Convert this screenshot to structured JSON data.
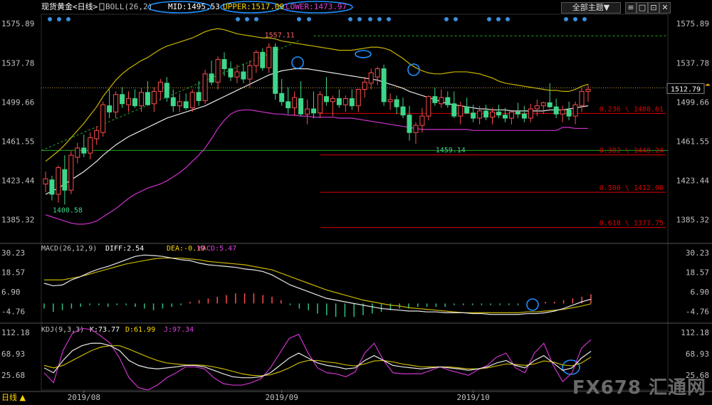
{
  "header": {
    "instrument": "现货黄金<日线>",
    "boll": "BOLL(26,2)",
    "mid": "MID:1495.53",
    "upper": "UPPER:1517.09",
    "lower": "LOWER:1473.97",
    "topic_button": "全部主题▼"
  },
  "window_buttons": [
    "≡",
    "□",
    "⊡",
    "✕"
  ],
  "bottom": {
    "period": "日线 ▲"
  },
  "watermark": "FX678 汇通网",
  "colors": {
    "up": "#ff4d4d",
    "down": "#3ed68a",
    "mid": "#e8e8e8",
    "upper": "#c8b400",
    "lower": "#cc33cc",
    "fib": "#e00000",
    "green_line": "#22aa22",
    "circle": "#1e90ff",
    "text": "#c0c0c0"
  },
  "chart_data": [
    {
      "type": "candlestick",
      "title": "现货黄金<日线>",
      "indicator": "BOLL(26,2)",
      "ylim": [
        1365,
        1585
      ],
      "y_ticks": [
        1575.89,
        1537.78,
        1499.66,
        1461.55,
        1423.44,
        1385.32
      ],
      "x_ticks": [
        {
          "label": "2019/08",
          "index": 6
        },
        {
          "label": "2019/09",
          "index": 37
        },
        {
          "label": "2019/10",
          "index": 67
        }
      ],
      "last_price": "1512.79",
      "price_labels": [
        {
          "text": "1557.11",
          "index": 36,
          "value": 1557.11
        },
        {
          "text": "1459.14",
          "index": 63,
          "value": 1459.14
        },
        {
          "text": "1400.58",
          "index": 3,
          "value": 1400.58
        }
      ],
      "fib_levels": [
        {
          "label": "0.236 \\ 1488.61",
          "value": 1488.61
        },
        {
          "label": "0.382 \\ 1448.24",
          "value": 1448.24
        },
        {
          "label": "0.500 \\ 1412.00",
          "value": 1412.0
        },
        {
          "label": "0.618 \\ 1377.75",
          "value": 1377.75
        }
      ],
      "candles": [
        [
          1420,
          1432,
          1412,
          1425
        ],
        [
          1424,
          1428,
          1404,
          1410
        ],
        [
          1410,
          1438,
          1402,
          1436
        ],
        [
          1434,
          1448,
          1400,
          1414
        ],
        [
          1414,
          1452,
          1410,
          1448
        ],
        [
          1446,
          1460,
          1440,
          1455
        ],
        [
          1455,
          1468,
          1446,
          1450
        ],
        [
          1450,
          1470,
          1444,
          1465
        ],
        [
          1464,
          1476,
          1458,
          1472
        ],
        [
          1470,
          1500,
          1466,
          1497
        ],
        [
          1496,
          1512,
          1484,
          1490
        ],
        [
          1490,
          1510,
          1484,
          1507
        ],
        [
          1507,
          1514,
          1494,
          1498
        ],
        [
          1497,
          1510,
          1490,
          1503
        ],
        [
          1503,
          1512,
          1494,
          1496
        ],
        [
          1496,
          1513,
          1490,
          1509
        ],
        [
          1509,
          1520,
          1496,
          1497
        ],
        [
          1498,
          1514,
          1490,
          1510
        ],
        [
          1510,
          1522,
          1502,
          1519
        ],
        [
          1518,
          1524,
          1500,
          1504
        ],
        [
          1504,
          1512,
          1490,
          1496
        ],
        [
          1496,
          1508,
          1490,
          1500
        ],
        [
          1500,
          1508,
          1492,
          1494
        ],
        [
          1494,
          1512,
          1490,
          1509
        ],
        [
          1509,
          1520,
          1496,
          1501
        ],
        [
          1501,
          1531,
          1498,
          1527
        ],
        [
          1527,
          1540,
          1516,
          1519
        ],
        [
          1519,
          1544,
          1512,
          1541
        ],
        [
          1541,
          1548,
          1525,
          1532
        ],
        [
          1532,
          1539,
          1520,
          1524
        ],
        [
          1524,
          1536,
          1518,
          1529
        ],
        [
          1529,
          1537,
          1518,
          1522
        ],
        [
          1522,
          1540,
          1514,
          1535
        ],
        [
          1535,
          1550,
          1528,
          1548
        ],
        [
          1548,
          1552,
          1530,
          1533
        ],
        [
          1533,
          1557,
          1528,
          1553
        ],
        [
          1553,
          1557,
          1502,
          1508
        ],
        [
          1508,
          1522,
          1496,
          1500
        ],
        [
          1500,
          1514,
          1488,
          1494
        ],
        [
          1494,
          1510,
          1486,
          1504
        ],
        [
          1503,
          1520,
          1486,
          1488
        ],
        [
          1488,
          1502,
          1478,
          1493
        ],
        [
          1493,
          1510,
          1484,
          1489
        ],
        [
          1489,
          1510,
          1484,
          1507
        ],
        [
          1505,
          1524,
          1496,
          1500
        ],
        [
          1500,
          1506,
          1486,
          1503
        ],
        [
          1503,
          1512,
          1494,
          1497
        ],
        [
          1497,
          1506,
          1490,
          1503
        ],
        [
          1503,
          1512,
          1492,
          1496
        ],
        [
          1496,
          1512,
          1490,
          1512
        ],
        [
          1512,
          1524,
          1504,
          1519
        ],
        [
          1518,
          1532,
          1512,
          1528
        ],
        [
          1524,
          1534,
          1516,
          1532
        ],
        [
          1532,
          1536,
          1496,
          1500
        ],
        [
          1500,
          1508,
          1492,
          1502
        ],
        [
          1502,
          1506,
          1488,
          1495
        ],
        [
          1495,
          1504,
          1484,
          1487
        ],
        [
          1487,
          1496,
          1462,
          1470
        ],
        [
          1470,
          1480,
          1459,
          1477
        ],
        [
          1477,
          1494,
          1470,
          1486
        ],
        [
          1486,
          1506,
          1482,
          1505
        ],
        [
          1505,
          1514,
          1496,
          1499
        ],
        [
          1498,
          1512,
          1494,
          1504
        ],
        [
          1504,
          1510,
          1494,
          1497
        ],
        [
          1498,
          1510,
          1484,
          1486
        ],
        [
          1486,
          1500,
          1478,
          1496
        ],
        [
          1495,
          1504,
          1488,
          1489
        ],
        [
          1489,
          1497,
          1480,
          1484
        ],
        [
          1484,
          1496,
          1478,
          1491
        ],
        [
          1491,
          1497,
          1482,
          1485
        ],
        [
          1485,
          1494,
          1478,
          1490
        ],
        [
          1490,
          1497,
          1484,
          1487
        ],
        [
          1487,
          1494,
          1480,
          1484
        ],
        [
          1484,
          1492,
          1478,
          1490
        ],
        [
          1490,
          1499,
          1484,
          1488
        ],
        [
          1488,
          1496,
          1480,
          1484
        ],
        [
          1484,
          1498,
          1480,
          1493
        ],
        [
          1493,
          1502,
          1486,
          1496
        ],
        [
          1496,
          1500,
          1488,
          1499
        ],
        [
          1499,
          1518,
          1494,
          1495
        ],
        [
          1495,
          1503,
          1484,
          1488
        ],
        [
          1488,
          1496,
          1480,
          1492
        ],
        [
          1492,
          1500,
          1482,
          1486
        ],
        [
          1486,
          1500,
          1478,
          1497
        ],
        [
          1496,
          1514,
          1490,
          1510
        ],
        [
          1510,
          1517,
          1500,
          1512
        ]
      ],
      "mid": [
        1410,
        1413,
        1416,
        1420,
        1424,
        1428,
        1432,
        1437,
        1442,
        1448,
        1453,
        1458,
        1462,
        1466,
        1469,
        1472,
        1475,
        1478,
        1481,
        1484,
        1486,
        1488,
        1490,
        1492,
        1494,
        1496,
        1499,
        1502,
        1505,
        1508,
        1511,
        1514,
        1517,
        1520,
        1523,
        1526,
        1528,
        1530,
        1531,
        1532,
        1532,
        1532,
        1531,
        1530,
        1529,
        1528,
        1527,
        1526,
        1525,
        1524,
        1523,
        1522,
        1521,
        1519,
        1517,
        1515,
        1513,
        1510,
        1508,
        1506,
        1504,
        1502,
        1500,
        1498,
        1497,
        1496,
        1495,
        1494,
        1493,
        1493,
        1492,
        1492,
        1492,
        1491,
        1491,
        1491,
        1491,
        1491,
        1491,
        1492,
        1492,
        1492,
        1493,
        1494,
        1495,
        1496
      ],
      "upper": [
        1442,
        1447,
        1452,
        1458,
        1465,
        1472,
        1479,
        1487,
        1495,
        1505,
        1513,
        1521,
        1527,
        1532,
        1536,
        1540,
        1543,
        1547,
        1551,
        1554,
        1556,
        1558,
        1560,
        1562,
        1565,
        1568,
        1570,
        1571,
        1570,
        1568,
        1566,
        1565,
        1564,
        1563,
        1562,
        1562,
        1561,
        1559,
        1558,
        1557,
        1556,
        1555,
        1554,
        1553,
        1552,
        1551,
        1550,
        1550,
        1550,
        1551,
        1552,
        1553,
        1553,
        1552,
        1550,
        1546,
        1542,
        1537,
        1533,
        1530,
        1528,
        1527,
        1527,
        1528,
        1529,
        1529,
        1529,
        1528,
        1527,
        1525,
        1523,
        1520,
        1518,
        1517,
        1516,
        1515,
        1514,
        1513,
        1512,
        1511,
        1511,
        1510,
        1510,
        1512,
        1515,
        1517
      ],
      "lower": [
        1390,
        1388,
        1386,
        1384,
        1382,
        1381,
        1381,
        1382,
        1384,
        1388,
        1392,
        1396,
        1401,
        1406,
        1410,
        1413,
        1416,
        1418,
        1420,
        1423,
        1427,
        1431,
        1436,
        1442,
        1448,
        1455,
        1464,
        1474,
        1482,
        1488,
        1491,
        1492,
        1492,
        1491,
        1490,
        1489,
        1488,
        1488,
        1487,
        1487,
        1486,
        1486,
        1485,
        1485,
        1485,
        1485,
        1484,
        1484,
        1484,
        1483,
        1482,
        1481,
        1480,
        1479,
        1478,
        1477,
        1476,
        1475,
        1474,
        1473,
        1473,
        1473,
        1473,
        1473,
        1473,
        1473,
        1473,
        1472,
        1472,
        1472,
        1472,
        1472,
        1472,
        1472,
        1472,
        1472,
        1472,
        1472,
        1472,
        1472,
        1472,
        1475,
        1475,
        1474,
        1474,
        1474
      ]
    },
    {
      "type": "macd",
      "title": "MACD(26,12,9)",
      "diff": "DIFF:2.54",
      "dea": "DEA:-0.19",
      "macd": "MACD:5.47",
      "ylim": [
        -10,
        34
      ],
      "y_ticks": [
        30.23,
        18.57,
        6.9,
        -4.76
      ],
      "diff_values": [
        12.0,
        10.5,
        11.0,
        14.0,
        16.0,
        18.5,
        20.5,
        22.0,
        24.0,
        26.0,
        28.0,
        28.8,
        28.5,
        28.0,
        27.0,
        26.0,
        25.5,
        24.0,
        23.0,
        22.5,
        22.0,
        21.5,
        20.5,
        20.0,
        19.0,
        17.0,
        14.0,
        11.0,
        9.0,
        7.0,
        5.0,
        3.0,
        2.0,
        1.0,
        0.0,
        -1.0,
        -2.0,
        -3.0,
        -3.5,
        -4.0,
        -4.5,
        -4.5,
        -5.0,
        -5.0,
        -5.5,
        -5.5,
        -5.5,
        -6.0,
        -6.0,
        -6.5,
        -6.5,
        -6.5,
        -6.5,
        -6.0,
        -6.0,
        -5.5,
        -4.5,
        -3.0,
        -1.0,
        1.0,
        2.54
      ],
      "dea_values": [
        14.0,
        14.0,
        14.0,
        15.0,
        16.0,
        17.5,
        19.0,
        20.5,
        22.0,
        23.5,
        24.5,
        25.5,
        26.5,
        27.0,
        27.0,
        27.0,
        26.5,
        26.0,
        25.0,
        24.5,
        24.0,
        23.5,
        23.0,
        22.0,
        21.0,
        20.0,
        18.0,
        16.0,
        14.0,
        12.0,
        10.0,
        8.0,
        6.5,
        5.0,
        3.5,
        2.0,
        1.0,
        0.0,
        -1.0,
        -1.5,
        -2.5,
        -3.0,
        -3.5,
        -4.0,
        -4.5,
        -5.0,
        -5.5,
        -5.5,
        -5.5,
        -5.5,
        -5.5,
        -5.5,
        -5.5,
        -5.0,
        -5.0,
        -4.5,
        -4.0,
        -3.5,
        -2.5,
        -1.5,
        -0.19
      ],
      "hist": [
        -3,
        -5,
        -4,
        -3,
        -2,
        -1,
        -1,
        -2,
        -1,
        -1,
        -2,
        -3,
        -4,
        -3,
        -2,
        -1,
        1,
        2,
        3,
        4,
        5,
        6,
        6,
        6,
        5,
        4,
        2,
        -1,
        -3,
        -4,
        -6,
        -7,
        -8,
        -8,
        -8,
        -7,
        -6,
        -5,
        -4,
        -3,
        -3,
        -2,
        -2,
        -2,
        -2,
        -1,
        -1,
        -1,
        -1,
        -1,
        -1,
        -1,
        -1,
        0,
        0,
        1,
        1,
        2,
        3,
        4,
        5.47
      ],
      "x_positions": [
        60,
        830
      ]
    },
    {
      "type": "kdj",
      "title": "KDJ(9,3,3)",
      "k": "K:73.77",
      "d": "D:61.99",
      "j": "J:97.34",
      "ylim": [
        -5,
        125
      ],
      "y_ticks": [
        112.18,
        68.93,
        25.68
      ],
      "k_values": [
        40,
        30,
        55,
        75,
        85,
        90,
        90,
        85,
        75,
        55,
        45,
        40,
        38,
        40,
        42,
        45,
        45,
        42,
        35,
        28,
        22,
        20,
        20,
        22,
        30,
        45,
        60,
        70,
        60,
        50,
        45,
        42,
        38,
        40,
        55,
        65,
        55,
        45,
        42,
        40,
        38,
        40,
        42,
        40,
        38,
        35,
        38,
        42,
        50,
        55,
        45,
        40,
        55,
        65,
        50,
        35,
        40,
        60,
        73.77
      ],
      "d_values": [
        45,
        40,
        45,
        55,
        65,
        75,
        82,
        85,
        85,
        78,
        70,
        62,
        55,
        50,
        48,
        46,
        46,
        45,
        42,
        38,
        33,
        28,
        25,
        24,
        26,
        32,
        40,
        50,
        55,
        55,
        52,
        50,
        46,
        44,
        48,
        54,
        55,
        52,
        48,
        45,
        42,
        42,
        42,
        42,
        40,
        38,
        38,
        40,
        44,
        48,
        47,
        45,
        48,
        54,
        52,
        46,
        44,
        50,
        61.99
      ],
      "j_values": [
        30,
        10,
        75,
        110,
        120,
        118,
        105,
        90,
        60,
        20,
        0,
        -5,
        5,
        20,
        30,
        42,
        42,
        38,
        20,
        8,
        5,
        5,
        10,
        18,
        40,
        70,
        100,
        108,
        70,
        40,
        30,
        28,
        22,
        32,
        70,
        90,
        55,
        30,
        28,
        28,
        28,
        35,
        42,
        35,
        30,
        25,
        36,
        45,
        62,
        70,
        40,
        30,
        70,
        90,
        45,
        12,
        30,
        80,
        97.34
      ]
    }
  ]
}
